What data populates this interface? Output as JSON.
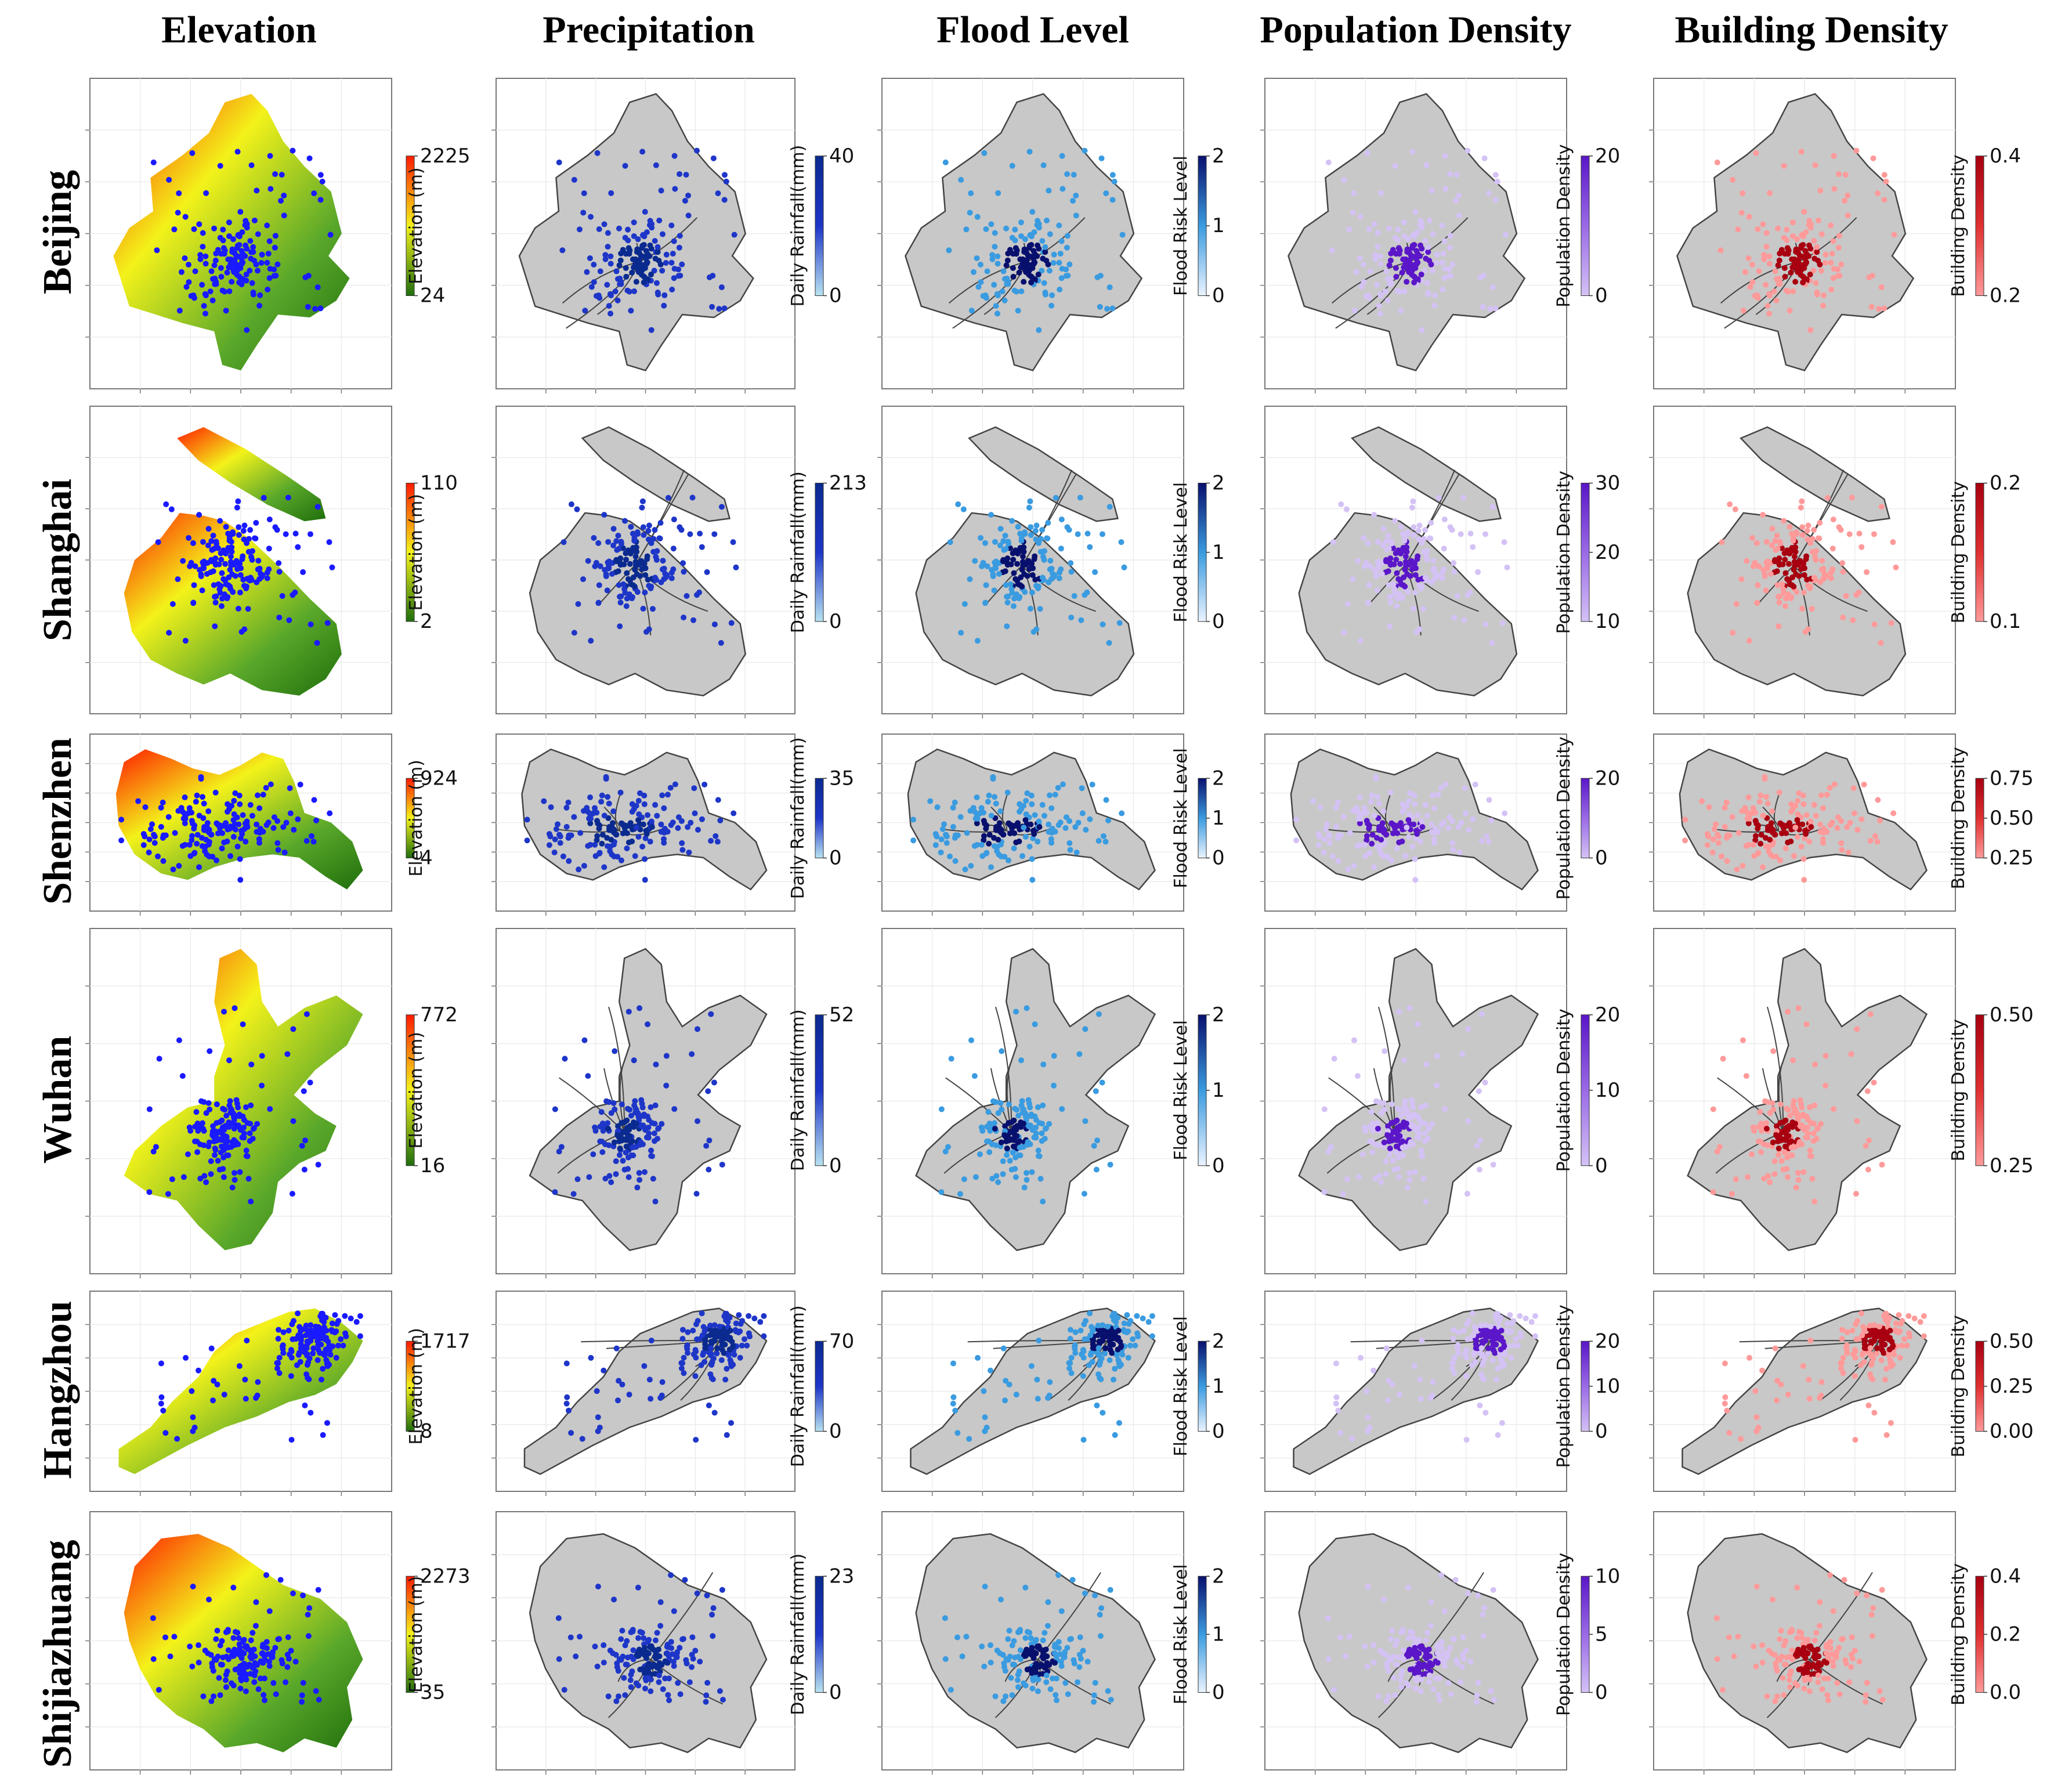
{
  "columns": [
    "Elevation",
    "Precipitation",
    "Flood Level",
    "Population Density",
    "Building Density"
  ],
  "colors": {
    "elev_low": "#1f6e0c",
    "elev_mid": "#f3f21a",
    "elev_high": "#ff1a00",
    "region_fill": "#c8c8c8",
    "boundary": "#444444",
    "precip_dot": "#1e36c8",
    "precip_light": "#b7e2f0",
    "precip_dark": "#0a2a8f",
    "flood_light": "#eaf3ff",
    "flood_mid": "#3a9be0",
    "flood_dark": "#08106e",
    "pop_light": "#d4c2f5",
    "pop_dark": "#5a16c8",
    "bld_light": "#ff9a9a",
    "bld_dark": "#a80010",
    "elev_station": "#1a1aff"
  },
  "labels": {
    "elevation": "Elevation (m)",
    "rainfall": "Daily Rainfall(mm)",
    "flood": "Flood Risk Level",
    "population": "Population Density",
    "building": "Building Density"
  },
  "cities": [
    {
      "name": "Beijing",
      "elev_max": "2225",
      "elev_min": "24",
      "rain_ticks": [
        "40",
        "0"
      ],
      "flood_ticks": [
        "2",
        "1",
        "0"
      ],
      "pop_ticks": [
        "20",
        "0"
      ],
      "bld_ticks": [
        "0.4",
        "0.2"
      ]
    },
    {
      "name": "Shanghai",
      "elev_max": "110",
      "elev_min": "2",
      "rain_ticks": [
        "213",
        "0"
      ],
      "flood_ticks": [
        "2",
        "1",
        "0"
      ],
      "pop_ticks": [
        "30",
        "20",
        "10"
      ],
      "bld_ticks": [
        "0.2",
        "0.1"
      ]
    },
    {
      "name": "Shenzhen",
      "elev_max": "924",
      "elev_min": "4",
      "rain_ticks": [
        "35",
        "0"
      ],
      "flood_ticks": [
        "2",
        "1",
        "0"
      ],
      "pop_ticks": [
        "20",
        "0"
      ],
      "bld_ticks": [
        "0.75",
        "0.50",
        "0.25"
      ]
    },
    {
      "name": "Wuhan",
      "elev_max": "772",
      "elev_min": "16",
      "rain_ticks": [
        "52",
        "0"
      ],
      "flood_ticks": [
        "2",
        "1",
        "0"
      ],
      "pop_ticks": [
        "20",
        "10",
        "0"
      ],
      "bld_ticks": [
        "0.50",
        "0.25"
      ]
    },
    {
      "name": "Hangzhou",
      "elev_max": "1717",
      "elev_min": "8",
      "rain_ticks": [
        "70",
        "0"
      ],
      "flood_ticks": [
        "2",
        "1",
        "0"
      ],
      "pop_ticks": [
        "20",
        "10",
        "0"
      ],
      "bld_ticks": [
        "0.50",
        "0.25",
        "0.00"
      ]
    },
    {
      "name": "Shijiazhuang",
      "elev_max": "2273",
      "elev_min": "35",
      "rain_ticks": [
        "23",
        "0"
      ],
      "flood_ticks": [
        "2",
        "1",
        "0"
      ],
      "pop_ticks": [
        "10",
        "5",
        "0"
      ],
      "bld_ticks": [
        "0.4",
        "0.2",
        "0.0"
      ]
    }
  ]
}
